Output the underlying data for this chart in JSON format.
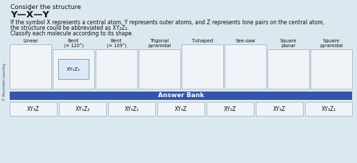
{
  "bg_color": "#dce8f0",
  "top_bar_color": "#c8d8e8",
  "title_lines": [
    "Consider the structure",
    "Y—Ẋ—Y",
    "If the symbol X represents a central atom, Y represents outer atoms, and Z represents lone pairs on the central atom,",
    "the structure could be abbreviated as XY₂Z₂.",
    "Classify each molecule according to its shape."
  ],
  "category_labels": [
    "Linear",
    "Bent\n(≈ 120°)",
    "Bent\n(≈ 109°)",
    "Trigonal\npyramidal",
    "T-shaped",
    "See-saw",
    "Square\nplanar",
    "Square\npyramidal"
  ],
  "placed_item": {
    "category_index": 1,
    "label": "XY₂Z₂"
  },
  "answer_bank_label": "Answer Bank",
  "answer_bank_bg": "#3355aa",
  "answer_bank_items": [
    "XY₃Z",
    "XY₁Z₂",
    "XY₄Z₁",
    "XY₄Z",
    "XY₂Z",
    "XY₃Z",
    "XY₃Z₁"
  ],
  "sidebar_text": "© Macmillan Learning",
  "white": "#ffffff",
  "text_color": "#111111",
  "box_bg": "#f0f4f8",
  "placed_box_bg": "#dce8f5",
  "box_border": "#aabbcc",
  "inner_box_border": "#8899aa"
}
